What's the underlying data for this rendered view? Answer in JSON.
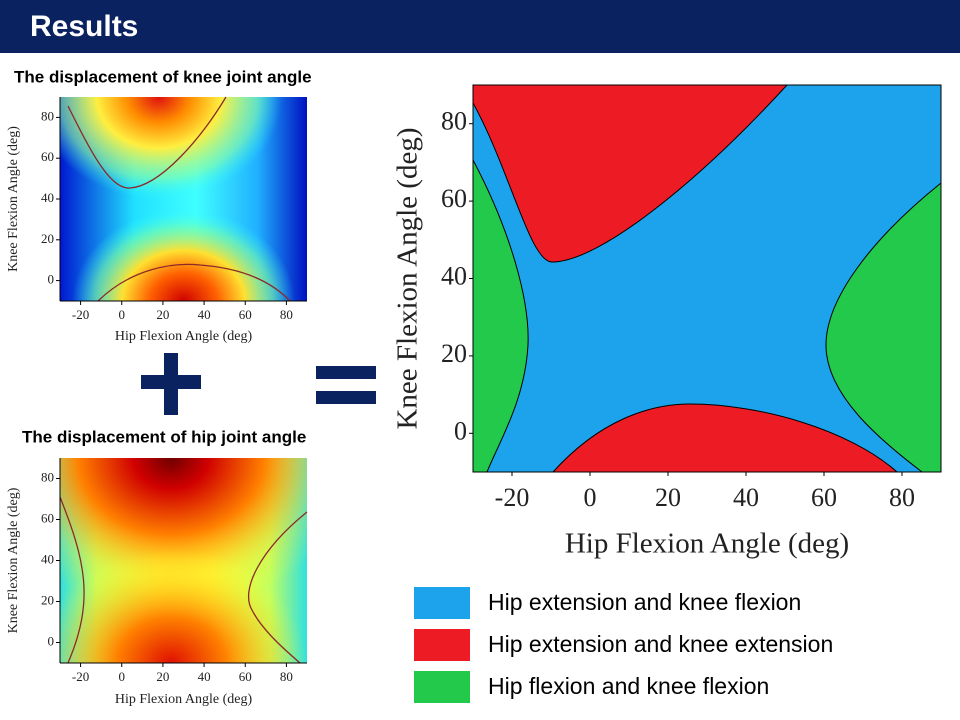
{
  "header": {
    "title": "Results"
  },
  "panels": [
    {
      "title": "The displacement of knee joint angle",
      "x_label": "Hip Flexion Angle (deg)",
      "y_label": "Knee Flexion Angle (deg)",
      "xlim": [
        -30,
        90
      ],
      "ylim": [
        -10,
        90
      ],
      "xticks": [
        -20,
        0,
        20,
        40,
        60,
        80
      ],
      "yticks": [
        0,
        20,
        40,
        60,
        80
      ]
    },
    {
      "title": "The displacement of hip joint angle",
      "x_label": "Hip Flexion Angle (deg)",
      "y_label": "Knee Flexion Angle (deg)",
      "xlim": [
        -30,
        90
      ],
      "ylim": [
        -10,
        90
      ],
      "xticks": [
        -20,
        0,
        20,
        40,
        60,
        80
      ],
      "yticks": [
        0,
        20,
        40,
        60,
        80
      ]
    },
    {
      "x_label": "Hip Flexion Angle (deg)",
      "y_label": "Knee Flexion Angle (deg)",
      "xlim": [
        -30,
        90
      ],
      "ylim": [
        -10,
        90
      ],
      "xticks": [
        -20,
        0,
        20,
        40,
        60,
        80
      ],
      "yticks": [
        0,
        20,
        40,
        60,
        80
      ]
    }
  ],
  "legend": [
    {
      "label": "Hip extension and knee flexion",
      "color": "#1ca3ec"
    },
    {
      "label": "Hip extension and knee extension",
      "color": "#ed1c24"
    },
    {
      "label": "Hip flexion and knee flexion",
      "color": "#22c94a"
    }
  ]
}
